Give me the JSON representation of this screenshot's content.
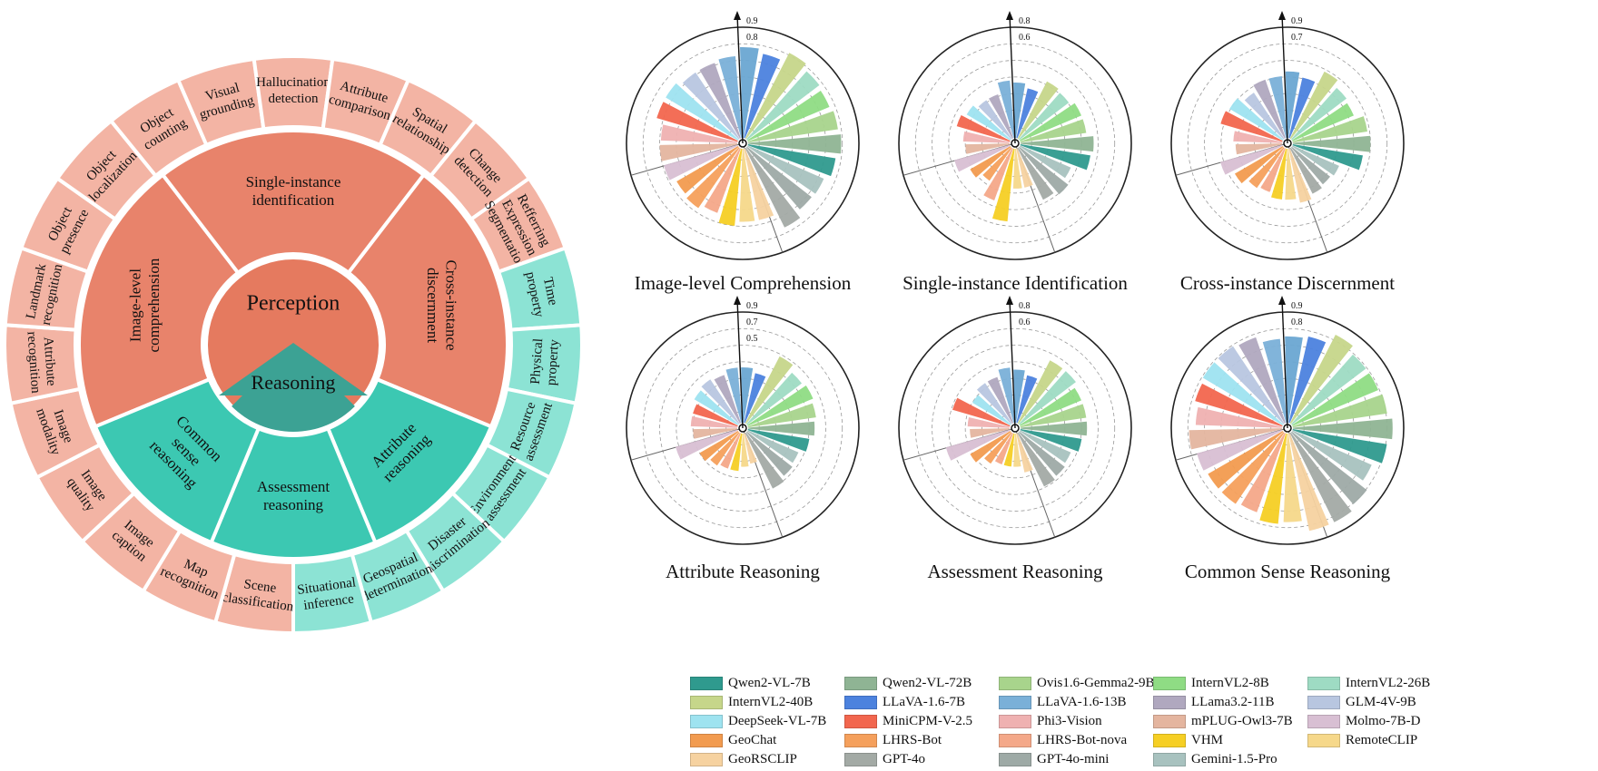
{
  "sunburst": {
    "center_label": "Perception",
    "reasoning_label": "Reasoning",
    "colors": {
      "perception_outer": "#f3b4a4",
      "perception_mid": "#e8836b",
      "perception_core": "#e57a5f",
      "reasoning_outer": "#8ce3d4",
      "reasoning_mid": "#3cc8b2",
      "reasoning_core": "#3ca294"
    },
    "middle_segments": [
      {
        "label": "Image-level comprehension",
        "group": "perception"
      },
      {
        "label": "Single-instance identification",
        "group": "perception"
      },
      {
        "label": "Cross-instance discernment",
        "group": "perception"
      },
      {
        "label": "Attribute reasoning",
        "group": "reasoning"
      },
      {
        "label": "Assessment reasoning",
        "group": "reasoning"
      },
      {
        "label": "Common sense reasoning",
        "group": "reasoning"
      }
    ],
    "outer_segments": [
      {
        "label": "Object presence",
        "group": "perception"
      },
      {
        "label": "Object localization",
        "group": "perception"
      },
      {
        "label": "Object counting",
        "group": "perception"
      },
      {
        "label": "Visual grounding",
        "group": "perception"
      },
      {
        "label": "Hallucination detection",
        "group": "perception"
      },
      {
        "label": "Attribute comparison",
        "group": "perception"
      },
      {
        "label": "Spatial relationship",
        "group": "perception"
      },
      {
        "label": "Change detection",
        "group": "perception"
      },
      {
        "label": "Refferring Expression Segmentation",
        "group": "perception"
      },
      {
        "label": "Time property",
        "group": "reasoning"
      },
      {
        "label": "Physical property",
        "group": "reasoning"
      },
      {
        "label": "Resource assessment",
        "group": "reasoning"
      },
      {
        "label": "Environment assessment",
        "group": "reasoning"
      },
      {
        "label": "Disaster discrimination",
        "group": "reasoning"
      },
      {
        "label": "Geospatial determination",
        "group": "reasoning"
      },
      {
        "label": "Situational inference",
        "group": "reasoning"
      },
      {
        "label": "Scene classification",
        "group": "perception"
      },
      {
        "label": "Map recognition",
        "group": "perception"
      },
      {
        "label": "Image caption",
        "group": "perception"
      },
      {
        "label": "Image quality",
        "group": "perception"
      },
      {
        "label": "Image modality",
        "group": "perception"
      },
      {
        "label": "Attribute recognition",
        "group": "perception"
      },
      {
        "label": "Landmark recognition",
        "group": "perception"
      }
    ]
  },
  "models": [
    {
      "name": "Qwen2-VL-7B",
      "color": "#6aa7d2"
    },
    {
      "name": "LLaVA-1.6-7B",
      "color": "#4c82de"
    },
    {
      "name": "InternVL2-40B",
      "color": "#c6d68a"
    },
    {
      "name": "InternVL2-26B",
      "color": "#9edbc3"
    },
    {
      "name": "InternVL2-8B",
      "color": "#8fdc84"
    },
    {
      "name": "Ovis1.6-Gemma2-9B",
      "color": "#a8d48c"
    },
    {
      "name": "Qwen2-VL-72B",
      "color": "#8fb494"
    },
    {
      "name": "Qwen2-VL-7B",
      "color": "#2f9a8e"
    },
    {
      "name": "Gemini-1.5-Pro",
      "color": "#a8c2bf"
    },
    {
      "name": "GPT-4o-mini",
      "color": "#9eaaa6"
    },
    {
      "name": "GPT-4o",
      "color": "#a3aaa5"
    },
    {
      "name": "GeoRSCLIP",
      "color": "#f6d2a0"
    },
    {
      "name": "RemoteCLIP",
      "color": "#f6d88a"
    },
    {
      "name": "VHM",
      "color": "#f6cf24"
    },
    {
      "name": "LHRS-Bot-nova",
      "color": "#f4a889"
    },
    {
      "name": "LHRS-Bot",
      "color": "#f5a05c"
    },
    {
      "name": "GeoChat",
      "color": "#f29b4f"
    },
    {
      "name": "Molmo-7B-D",
      "color": "#d8bfd3"
    },
    {
      "name": "mPLUG-Owl3-7B",
      "color": "#e4b59f"
    },
    {
      "name": "Phi3-Vision",
      "color": "#efb1b1"
    },
    {
      "name": "MiniCPM-V-2.5",
      "color": "#f2664e"
    },
    {
      "name": "DeepSeek-VL-7B",
      "color": "#9ee3f0"
    },
    {
      "name": "GLM-4V-9B",
      "color": "#b8c6e0"
    },
    {
      "name": "LLama3.2-11B",
      "color": "#b0a8bf"
    },
    {
      "name": "LLaVA-1.6-13B",
      "color": "#7ab0d8"
    }
  ],
  "chart_data": [
    {
      "type": "polar-bar",
      "title": "Image-level Comprehension",
      "r_ticks": [
        "0.9",
        "0.8"
      ],
      "rlim": [
        0,
        1
      ],
      "values": [
        0.82,
        0.78,
        0.87,
        0.82,
        0.8,
        0.82,
        0.84,
        0.8,
        0.75,
        0.74,
        0.8,
        0.66,
        0.66,
        0.7,
        0.62,
        0.66,
        0.64,
        0.69,
        0.7,
        0.69,
        0.76,
        0.76,
        0.72,
        0.72,
        0.74
      ]
    },
    {
      "type": "polar-bar",
      "title": "Single-instance Identification",
      "r_ticks": [
        "0.8",
        "0.6"
      ],
      "rlim": [
        0,
        1
      ],
      "values": [
        0.5,
        0.46,
        0.58,
        0.56,
        0.6,
        0.6,
        0.66,
        0.64,
        0.5,
        0.56,
        0.52,
        0.36,
        0.36,
        0.66,
        0.5,
        0.36,
        0.42,
        0.52,
        0.4,
        0.42,
        0.5,
        0.46,
        0.42,
        0.42,
        0.52
      ]
    },
    {
      "type": "polar-bar",
      "title": "Cross-instance Discernment",
      "r_ticks": [
        "0.9",
        "0.7"
      ],
      "rlim": [
        0,
        1
      ],
      "values": [
        0.6,
        0.56,
        0.68,
        0.62,
        0.6,
        0.68,
        0.7,
        0.64,
        0.46,
        0.44,
        0.46,
        0.5,
        0.46,
        0.46,
        0.42,
        0.44,
        0.5,
        0.58,
        0.42,
        0.44,
        0.58,
        0.56,
        0.5,
        0.56,
        0.56
      ]
    },
    {
      "type": "polar-bar",
      "title": "Attribute Reasoning",
      "r_ticks": [
        "0.9",
        "0.7",
        "0.5"
      ],
      "rlim": [
        0,
        1
      ],
      "values": [
        0.5,
        0.46,
        0.68,
        0.62,
        0.64,
        0.62,
        0.6,
        0.56,
        0.5,
        0.52,
        0.56,
        0.28,
        0.3,
        0.34,
        0.34,
        0.36,
        0.4,
        0.58,
        0.4,
        0.42,
        0.42,
        0.46,
        0.48,
        0.46,
        0.5
      ]
    },
    {
      "type": "polar-bar",
      "title": "Assessment Reasoning",
      "r_ticks": [
        "0.8",
        "0.6"
      ],
      "rlim": [
        0,
        1
      ],
      "values": [
        0.48,
        0.44,
        0.64,
        0.64,
        0.6,
        0.6,
        0.6,
        0.56,
        0.5,
        0.52,
        0.54,
        0.36,
        0.3,
        0.3,
        0.3,
        0.34,
        0.42,
        0.6,
        0.36,
        0.38,
        0.54,
        0.4,
        0.44,
        0.44,
        0.5
      ]
    },
    {
      "type": "polar-bar",
      "title": "Common Sense Reasoning",
      "r_ticks": [
        "0.9",
        "0.8"
      ],
      "rlim": [
        0,
        1
      ],
      "values": [
        0.78,
        0.8,
        0.9,
        0.84,
        0.84,
        0.86,
        0.9,
        0.86,
        0.78,
        0.86,
        0.9,
        0.9,
        0.8,
        0.82,
        0.76,
        0.78,
        0.78,
        0.8,
        0.84,
        0.78,
        0.82,
        0.84,
        0.84,
        0.82,
        0.76
      ]
    }
  ],
  "legend": [
    {
      "label": "Qwen2-VL-7B",
      "color": "#2f9a8e"
    },
    {
      "label": "Qwen2-VL-72B",
      "color": "#8fb494"
    },
    {
      "label": "Ovis1.6-Gemma2-9B",
      "color": "#a8d48c"
    },
    {
      "label": "InternVL2-8B",
      "color": "#8fdc84"
    },
    {
      "label": "InternVL2-26B",
      "color": "#9edbc3"
    },
    {
      "label": "InternVL2-40B",
      "color": "#c6d68a"
    },
    {
      "label": "LLaVA-1.6-7B",
      "color": "#4c82de"
    },
    {
      "label": "LLaVA-1.6-13B",
      "color": "#7ab0d8"
    },
    {
      "label": "LLama3.2-11B",
      "color": "#b0a8bf"
    },
    {
      "label": "GLM-4V-9B",
      "color": "#b8c6e0"
    },
    {
      "label": "DeepSeek-VL-7B",
      "color": "#9ee3f0"
    },
    {
      "label": "MiniCPM-V-2.5",
      "color": "#f2664e"
    },
    {
      "label": "Phi3-Vision",
      "color": "#efb1b1"
    },
    {
      "label": "mPLUG-Owl3-7B",
      "color": "#e4b59f"
    },
    {
      "label": "Molmo-7B-D",
      "color": "#d8bfd3"
    },
    {
      "label": "GeoChat",
      "color": "#f29b4f"
    },
    {
      "label": "LHRS-Bot",
      "color": "#f5a05c"
    },
    {
      "label": "LHRS-Bot-nova",
      "color": "#f4a889"
    },
    {
      "label": "VHM",
      "color": "#f6cf24"
    },
    {
      "label": "RemoteCLIP",
      "color": "#f6d88a"
    },
    {
      "label": "GeoRSCLIP",
      "color": "#f6d2a0"
    },
    {
      "label": "GPT-4o",
      "color": "#a3aaa5"
    },
    {
      "label": "GPT-4o-mini",
      "color": "#9eaaa6"
    },
    {
      "label": "Gemini-1.5-Pro",
      "color": "#a8c2bf"
    }
  ]
}
